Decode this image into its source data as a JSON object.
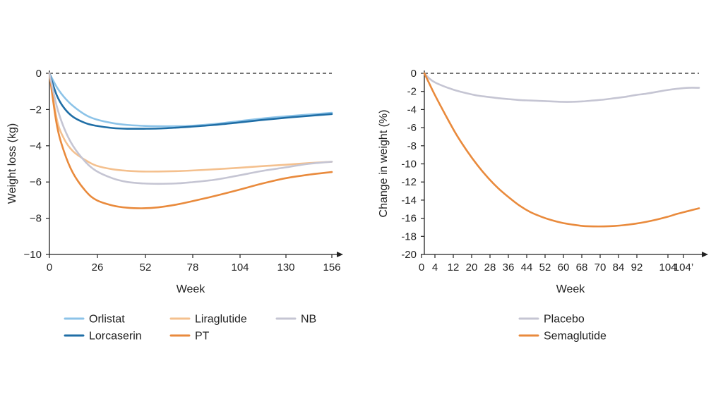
{
  "chart_data": [
    {
      "type": "line",
      "title": "",
      "xlabel": "Week",
      "ylabel": "Weight loss (kg)",
      "xlim": [
        0,
        156
      ],
      "ylim": [
        -10,
        0
      ],
      "x_ticks": [
        "0",
        "26",
        "52",
        "78",
        "104",
        "130",
        "156"
      ],
      "y_ticks": [
        "0",
        "−2",
        "−4",
        "−6",
        "−8",
        "−10"
      ],
      "reference_line": 0,
      "grid": false,
      "legend_position": "bottom",
      "x": [
        0,
        4,
        8,
        13,
        20,
        26,
        35,
        43,
        52,
        60,
        70,
        78,
        91,
        104,
        117,
        130,
        143,
        156
      ],
      "series": [
        {
          "name": "Orlistat",
          "color": "#8cc3e8",
          "values": [
            0,
            -0.75,
            -1.3,
            -1.8,
            -2.3,
            -2.55,
            -2.75,
            -2.85,
            -2.9,
            -2.92,
            -2.92,
            -2.9,
            -2.8,
            -2.65,
            -2.5,
            -2.38,
            -2.28,
            -2.18
          ]
        },
        {
          "name": "Lorcaserin",
          "color": "#1f6ea6",
          "values": [
            0,
            -1.2,
            -1.9,
            -2.4,
            -2.75,
            -2.9,
            -3.02,
            -3.06,
            -3.06,
            -3.05,
            -3.0,
            -2.95,
            -2.85,
            -2.72,
            -2.58,
            -2.46,
            -2.35,
            -2.25
          ]
        },
        {
          "name": "Liraglutide",
          "color": "#f4c08e",
          "values": [
            0,
            -2.5,
            -3.6,
            -4.3,
            -4.8,
            -5.1,
            -5.3,
            -5.38,
            -5.42,
            -5.42,
            -5.4,
            -5.37,
            -5.3,
            -5.22,
            -5.13,
            -5.05,
            -4.96,
            -4.88
          ]
        },
        {
          "name": "PT",
          "color": "#e98a3c",
          "values": [
            0,
            -2.8,
            -4.3,
            -5.5,
            -6.5,
            -7.0,
            -7.3,
            -7.42,
            -7.45,
            -7.4,
            -7.25,
            -7.08,
            -6.78,
            -6.45,
            -6.1,
            -5.8,
            -5.6,
            -5.45
          ]
        },
        {
          "name": "NB",
          "color": "#c5c5d3",
          "values": [
            0,
            -1.8,
            -3.0,
            -4.0,
            -4.9,
            -5.4,
            -5.8,
            -6.0,
            -6.08,
            -6.1,
            -6.08,
            -6.02,
            -5.88,
            -5.65,
            -5.4,
            -5.2,
            -5.0,
            -4.88
          ]
        }
      ]
    },
    {
      "type": "line",
      "title": "",
      "xlabel": "Week",
      "ylabel": "Change in weight (%)",
      "xlim": [
        0,
        104
      ],
      "ylim": [
        -20,
        0
      ],
      "x_ticks": [
        "0",
        "4",
        "12",
        "20",
        "28",
        "36",
        "44",
        "52",
        "60",
        "68",
        "70",
        "84",
        "92",
        "104",
        "104’"
      ],
      "y_ticks": [
        "0",
        "-2",
        "-4",
        "-6",
        "-8",
        "-10",
        "-12",
        "-14",
        "-16",
        "-18",
        "-20"
      ],
      "reference_line": 0,
      "grid": false,
      "legend_position": "bottom",
      "x": [
        0,
        2,
        4,
        8,
        12,
        16,
        20,
        24,
        28,
        32,
        36,
        40,
        44,
        48,
        52,
        56,
        60,
        64,
        68,
        72,
        76,
        80,
        84,
        88,
        92,
        96,
        100,
        104
      ],
      "series": [
        {
          "name": "Placebo",
          "color": "#c5c5d3",
          "values": [
            0,
            -0.6,
            -1.0,
            -1.5,
            -1.9,
            -2.2,
            -2.45,
            -2.6,
            -2.75,
            -2.85,
            -2.95,
            -3.0,
            -3.05,
            -3.1,
            -3.15,
            -3.15,
            -3.1,
            -3.0,
            -2.9,
            -2.75,
            -2.6,
            -2.4,
            -2.25,
            -2.05,
            -1.85,
            -1.7,
            -1.6,
            -1.6
          ]
        },
        {
          "name": "Semaglutide",
          "color": "#e98a3c",
          "values": [
            0,
            -1.2,
            -2.4,
            -4.6,
            -6.7,
            -8.5,
            -10.1,
            -11.5,
            -12.7,
            -13.7,
            -14.6,
            -15.3,
            -15.8,
            -16.2,
            -16.5,
            -16.7,
            -16.85,
            -16.9,
            -16.9,
            -16.85,
            -16.75,
            -16.6,
            -16.4,
            -16.15,
            -15.85,
            -15.5,
            -15.2,
            -14.9
          ]
        }
      ]
    }
  ]
}
